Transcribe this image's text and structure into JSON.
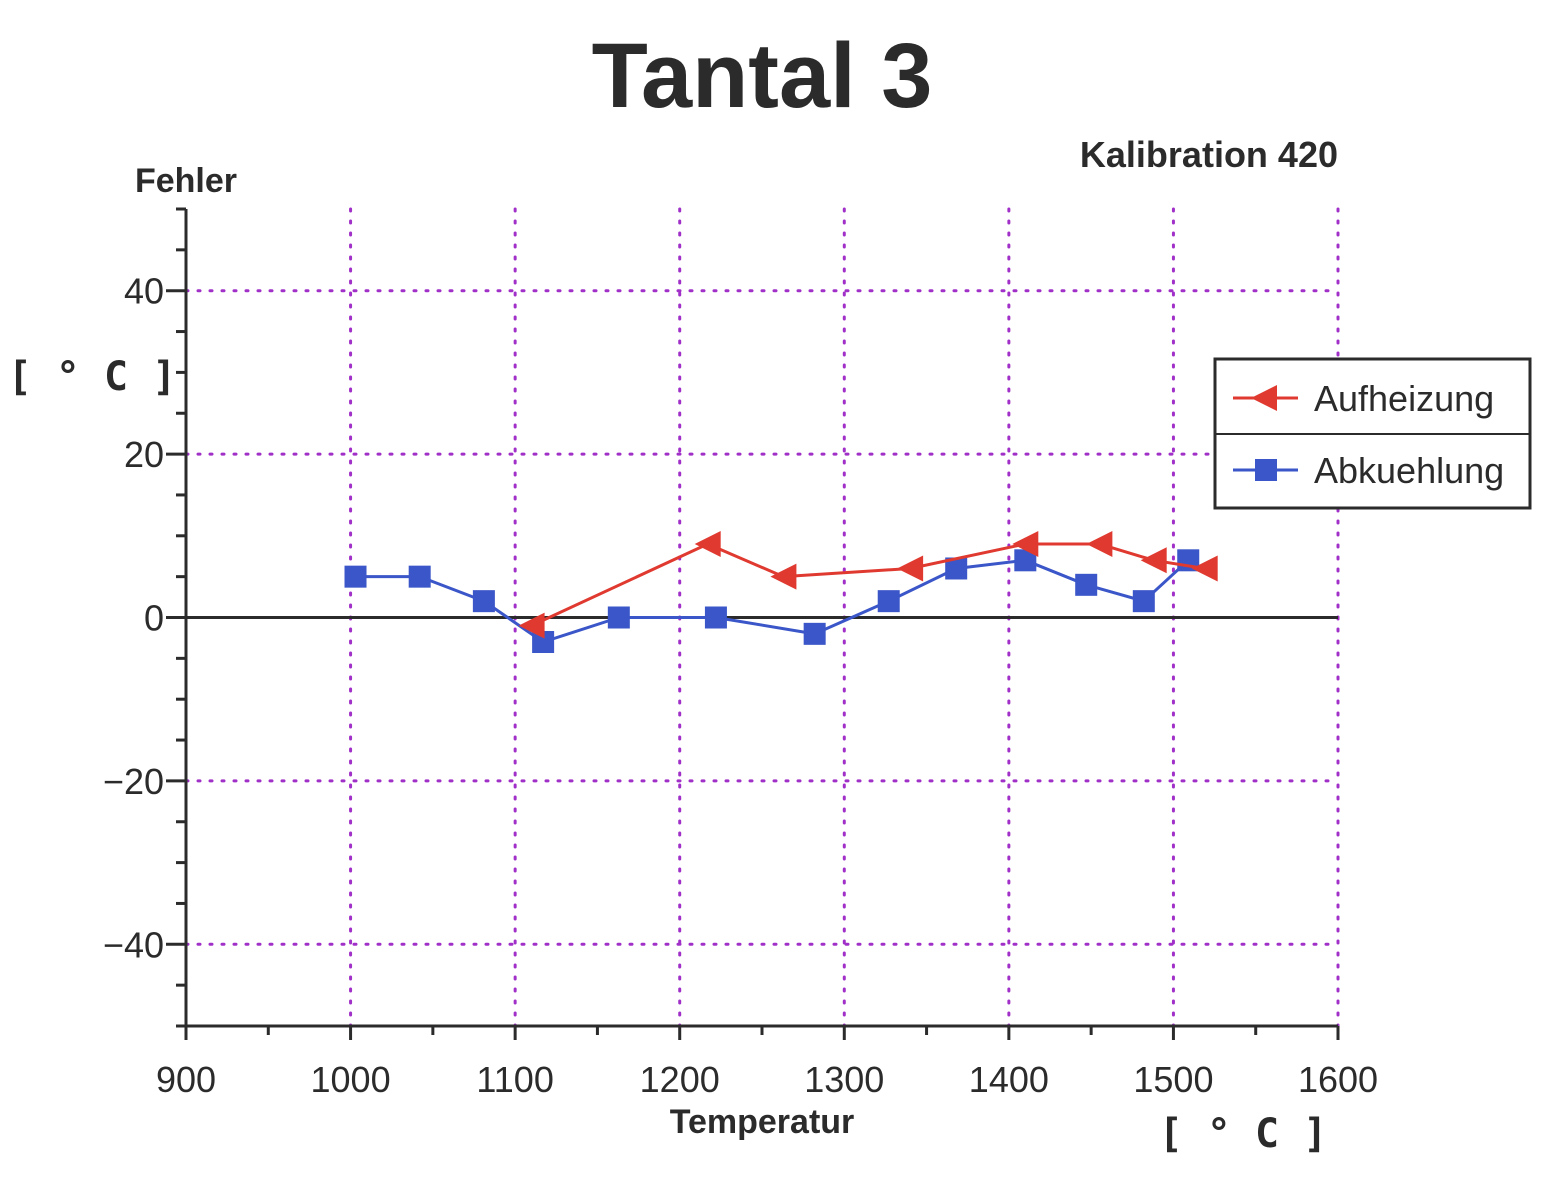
{
  "chart_data": {
    "type": "line",
    "title": "Tantal 3",
    "subtitle": "Kalibration 420",
    "ylabel": "Fehler",
    "ylabel_unit": "[ ° C ]",
    "xlabel": "Temperatur",
    "xlabel_unit": "[ ° C ]",
    "xlim": [
      900,
      1600
    ],
    "ylim": [
      -50,
      50
    ],
    "x_ticks": [
      900,
      1000,
      1100,
      1200,
      1300,
      1400,
      1500,
      1600
    ],
    "x_tick_labels": [
      "900",
      "1000",
      "1100",
      "1200",
      "1300",
      "1400",
      "1500",
      "1600"
    ],
    "y_ticks": [
      -40,
      -20,
      0,
      20,
      40
    ],
    "y_tick_labels": [
      "−40",
      "−20",
      "0",
      "20",
      "40"
    ],
    "grid": true,
    "legend_position": "right",
    "series": [
      {
        "name": "Aufheizung",
        "color": "#e03a30",
        "marker": "triangle-left",
        "x": [
          1110,
          1217,
          1263,
          1340,
          1410,
          1455,
          1488,
          1519
        ],
        "y": [
          -1,
          9,
          5,
          6,
          9,
          9,
          7,
          6
        ]
      },
      {
        "name": "Abkuehlung",
        "color": "#3a56c8",
        "marker": "square",
        "x": [
          1003,
          1042,
          1081,
          1117,
          1163,
          1222,
          1282,
          1327,
          1368,
          1410,
          1447,
          1482,
          1509
        ],
        "y": [
          5,
          5,
          2,
          -3,
          0,
          0,
          -2,
          2,
          6,
          7,
          4,
          2,
          7
        ]
      }
    ]
  }
}
